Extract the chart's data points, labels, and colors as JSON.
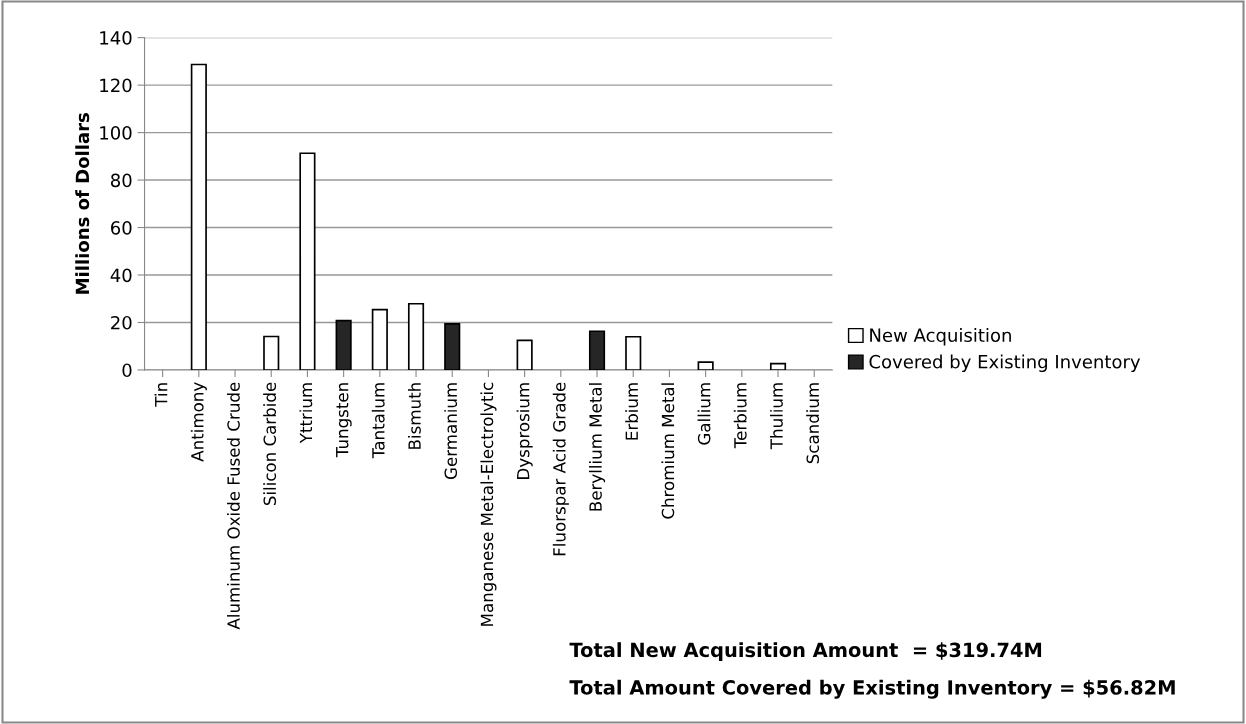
{
  "chart_data": {
    "type": "bar",
    "ylabel": "Millions of Dollars",
    "categories": [
      "Tin",
      "Antimony",
      "Aluminum Oxide Fused Crude",
      "Silicon Carbide",
      "Yttrium",
      "Tungsten",
      "Tantalum",
      "Bismuth",
      "Germanium",
      "Manganese Metal-Electrolytic",
      "Dysprosium",
      "Fluorspar Acid Grade",
      "Beryllium Metal",
      "Erbium",
      "Chromium Metal",
      "Gallium",
      "Terbium",
      "Thulium",
      "Scandium"
    ],
    "series": [
      {
        "name": "New Acquisition",
        "color": "#ffffff",
        "values": [
          null,
          128.7,
          null,
          14.1,
          91.3,
          null,
          25.4,
          27.9,
          null,
          null,
          12.5,
          null,
          null,
          14.0,
          null,
          3.3,
          null,
          2.7,
          null
        ]
      },
      {
        "name": "Covered by Existing Inventory",
        "color": "#262626",
        "values": [
          null,
          null,
          null,
          null,
          null,
          20.8,
          null,
          null,
          19.4,
          null,
          null,
          null,
          16.3,
          null,
          null,
          null,
          null,
          null,
          null
        ]
      }
    ],
    "ylim": [
      0,
      140
    ],
    "yticks": [
      0,
      20,
      40,
      60,
      80,
      100,
      120,
      140
    ],
    "grid": "y",
    "legend": "right",
    "annotations": [
      "Total New Acquisition Amount  = $319.74M",
      "Total Amount Covered by Existing Inventory = $56.82M"
    ]
  }
}
